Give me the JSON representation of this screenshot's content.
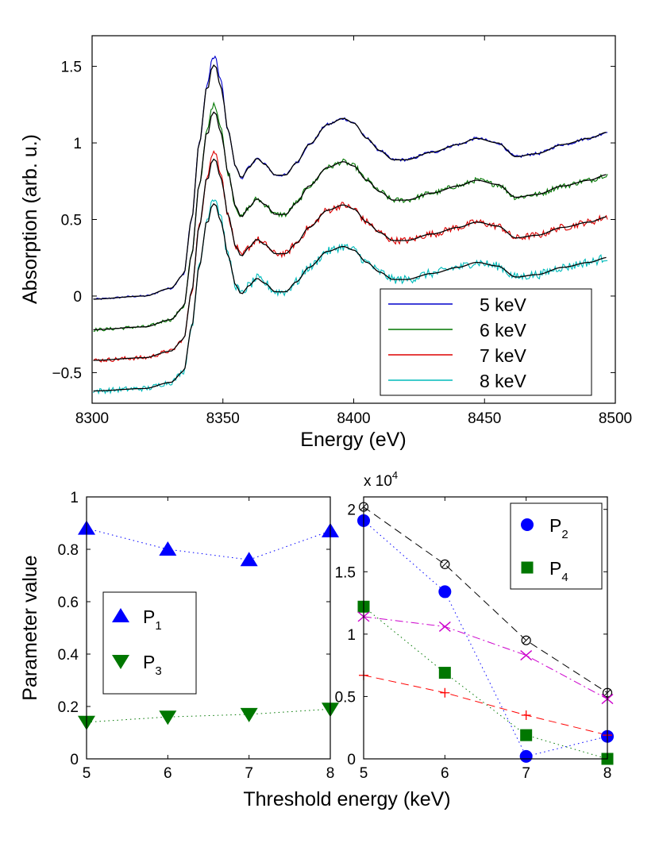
{
  "chart_data": [
    {
      "type": "line",
      "title": "",
      "xlabel": "Energy (eV)",
      "ylabel": "Absorption (arb. u.)",
      "xlim": [
        8300,
        8500
      ],
      "ylim": [
        -0.7,
        1.7
      ],
      "xticks": [
        8300,
        8350,
        8400,
        8450,
        8500
      ],
      "xtick_labels": [
        "8300",
        "8350",
        "8400",
        "8450",
        "8500"
      ],
      "yticks": [
        -0.5,
        0,
        0.5,
        1,
        1.5
      ],
      "ytick_labels": [
        "−0.5",
        "0",
        "0.5",
        "1",
        "1.5"
      ],
      "legend_position": "bottom-right",
      "fit_color": "#000000",
      "fit_description": "",
      "series": [
        {
          "name": "5 keV",
          "color": "#0000cc",
          "offset": 0.0,
          "noise": 0.012
        },
        {
          "name": "6 keV",
          "color": "#007700",
          "offset": -0.2,
          "noise": 0.022
        },
        {
          "name": "7 keV",
          "color": "#dd0000",
          "offset": -0.4,
          "noise": 0.028
        },
        {
          "name": "8 keV",
          "color": "#00bbbb",
          "offset": -0.6,
          "noise": 0.036
        }
      ],
      "profile": {
        "x": [
          8300,
          8320,
          8330,
          8335,
          8338,
          8341,
          8344,
          8346,
          8347,
          8349,
          8352,
          8355,
          8357,
          8360,
          8363,
          8366,
          8370,
          8374,
          8378,
          8383,
          8390,
          8396,
          8400,
          8405,
          8410,
          8415,
          8420,
          8430,
          8440,
          8447,
          8455,
          8462,
          8470,
          8480,
          8490,
          8497
        ],
        "y_5keV": [
          -0.02,
          0.0,
          0.05,
          0.14,
          0.5,
          1.0,
          1.38,
          1.55,
          1.56,
          1.42,
          1.08,
          0.84,
          0.77,
          0.84,
          0.9,
          0.86,
          0.79,
          0.79,
          0.87,
          0.99,
          1.12,
          1.16,
          1.13,
          1.03,
          0.95,
          0.89,
          0.89,
          0.94,
          0.99,
          1.03,
          1.0,
          0.91,
          0.93,
          0.99,
          1.03,
          1.07
        ]
      },
      "fit_amplitude": [
        1.0,
        0.93,
        0.86,
        0.8
      ]
    },
    {
      "type": "scatter",
      "xlabel": "Threshold energy (keV)",
      "ylabel": "Parameter value",
      "xlim": [
        5,
        8
      ],
      "ylim": [
        0,
        1
      ],
      "xticks": [
        5,
        6,
        7,
        8
      ],
      "xtick_labels": [
        "5",
        "6",
        "7",
        "8"
      ],
      "yticks": [
        0,
        0.2,
        0.4,
        0.6,
        0.8,
        1
      ],
      "ytick_labels": [
        "0",
        "0.2",
        "0.4",
        "0.6",
        "0.8",
        "1"
      ],
      "legend_position": "center-left",
      "series": [
        {
          "name": "P",
          "subscript": "1",
          "marker": "triangle-up",
          "color": "#0000ff",
          "line": "dotted",
          "x": [
            5,
            6,
            7,
            8
          ],
          "values": [
            0.88,
            0.8,
            0.76,
            0.87
          ]
        },
        {
          "name": "P",
          "subscript": "3",
          "marker": "triangle-down",
          "color": "#007700",
          "line": "dotted",
          "x": [
            5,
            6,
            7,
            8
          ],
          "values": [
            0.14,
            0.16,
            0.17,
            0.19
          ]
        }
      ]
    },
    {
      "type": "scatter",
      "xlabel": "",
      "ylabel": "",
      "scale_label": "x 10",
      "scale_exponent": "4",
      "xlim": [
        5,
        8
      ],
      "ylim": [
        0,
        2.1
      ],
      "xticks": [
        5,
        6,
        7,
        8
      ],
      "xtick_labels": [
        "5",
        "6",
        "7",
        "8"
      ],
      "yticks": [
        0,
        0.5,
        1,
        1.5,
        2
      ],
      "ytick_labels": [
        "0",
        "0.5",
        "1",
        "1.5",
        "2"
      ],
      "legend_position": "top-right",
      "series": [
        {
          "name": "P",
          "subscript": "2",
          "marker": "circle",
          "color": "#0000ff",
          "line": "dotted",
          "x": [
            5,
            6,
            7,
            8
          ],
          "values": [
            1.91,
            1.34,
            0.02,
            0.18
          ],
          "in_legend": true
        },
        {
          "name": "P",
          "subscript": "4",
          "marker": "square",
          "color": "#007700",
          "line": "dotted",
          "x": [
            5,
            6,
            7,
            8
          ],
          "values": [
            1.22,
            0.69,
            0.19,
            0.0
          ],
          "in_legend": true
        },
        {
          "name": "",
          "marker": "open-circle",
          "color": "#000000",
          "line": "dashed",
          "x": [
            5,
            6,
            7,
            8
          ],
          "values": [
            2.02,
            1.56,
            0.95,
            0.53
          ],
          "in_legend": false
        },
        {
          "name": "",
          "marker": "x",
          "color": "#cc00cc",
          "line": "dashdot",
          "x": [
            5,
            6,
            7,
            8
          ],
          "values": [
            1.14,
            1.06,
            0.83,
            0.48
          ],
          "in_legend": false
        },
        {
          "name": "",
          "marker": "plus",
          "color": "#ff0000",
          "line": "dashed",
          "x": [
            5,
            6,
            7,
            8
          ],
          "values": [
            0.67,
            0.53,
            0.35,
            0.19
          ],
          "in_legend": false
        }
      ]
    }
  ]
}
